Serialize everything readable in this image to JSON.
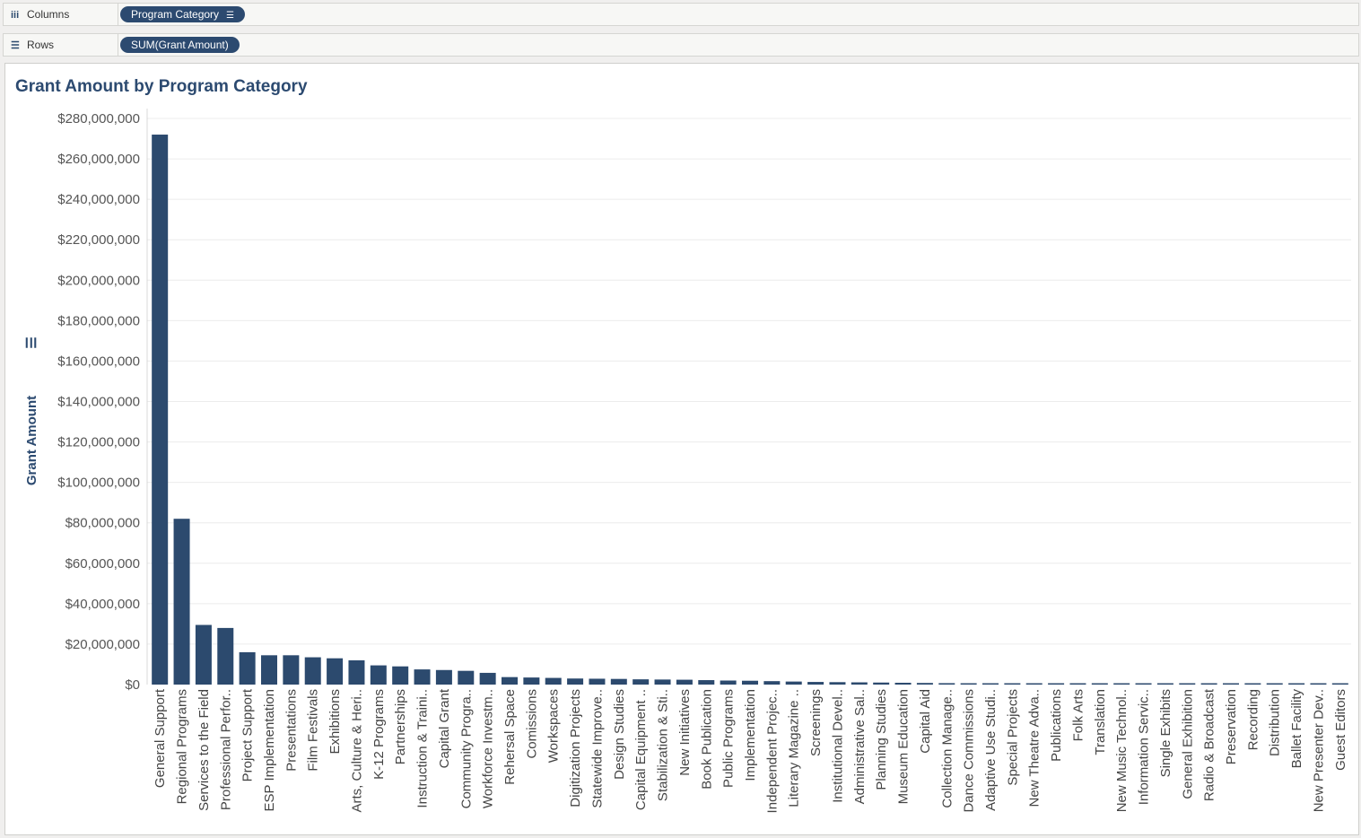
{
  "shelves": {
    "columns": {
      "label": "Columns",
      "icon": "columns-icon",
      "pill": "Program Category"
    },
    "rows": {
      "label": "Rows",
      "icon": "rows-icon",
      "pill": "SUM(Grant Amount)"
    }
  },
  "colors": {
    "bar": "#2c4a6e",
    "pill": "#2c4a70",
    "gridline": "#ececec"
  },
  "chart_data": {
    "type": "bar",
    "title": "Grant Amount by Program Category",
    "xlabel": "",
    "ylabel": "Grant Amount",
    "ylim": [
      0,
      280000000
    ],
    "yticks": [
      0,
      20000000,
      40000000,
      60000000,
      80000000,
      100000000,
      120000000,
      140000000,
      160000000,
      180000000,
      200000000,
      220000000,
      240000000,
      260000000,
      280000000
    ],
    "ytick_labels": [
      "$0",
      "$20,000,000",
      "$40,000,000",
      "$60,000,000",
      "$80,000,000",
      "$100,000,000",
      "$120,000,000",
      "$140,000,000",
      "$160,000,000",
      "$180,000,000",
      "$200,000,000",
      "$220,000,000",
      "$240,000,000",
      "$260,000,000",
      "$280,000,000"
    ],
    "grid": true,
    "categories": [
      "General Support",
      "Regional Programs",
      "Services to the Field",
      "Professional Perfor..",
      "Project Support",
      "ESP Implementation",
      "Presentations",
      "Film Festivals",
      "Exhibitions",
      "Arts, Culture & Heri..",
      "K-12 Programs",
      "Partnerships",
      "Instruction & Traini..",
      "Capital Grant",
      "Community Progra..",
      "Workforce Investm..",
      "Rehersal Space",
      "Comissions",
      "Workspaces",
      "Digitization Projects",
      "Statewide Improve..",
      "Design Studies",
      "Capital Equipment ..",
      "Stabilization & Sti..",
      "New Initiatives",
      "Book Publication",
      "Public Programs",
      "Implementation",
      "Independent Projec..",
      "Literary Magazine ..",
      "Screenings",
      "Institutional Devel..",
      "Administrative Sal..",
      "Planning Studies",
      "Museum Education",
      "Capital Aid",
      "Collection Manage..",
      "Dance Commissions",
      "Adaptive Use Studi..",
      "Special Projects",
      "New Theatre Adva..",
      "Publications",
      "Folk Arts",
      "Translation",
      "New Music Technol..",
      "Information Servic..",
      "Single Exhibits",
      "General Exhibition",
      "Radio & Broadcast",
      "Preservation",
      "Recording",
      "Distribution",
      "Ballet Facility",
      "New Presenter Dev..",
      "Guest Editors"
    ],
    "values": [
      272000000,
      82000000,
      29500000,
      28000000,
      16000000,
      14500000,
      14500000,
      13500000,
      13000000,
      12000000,
      9500000,
      9000000,
      7500000,
      7200000,
      6800000,
      5800000,
      3700000,
      3500000,
      3300000,
      3000000,
      2900000,
      2800000,
      2600000,
      2500000,
      2400000,
      2200000,
      2000000,
      1900000,
      1700000,
      1500000,
      1300000,
      1200000,
      1100000,
      1000000,
      900000,
      800000,
      700000,
      650000,
      600000,
      550000,
      500000,
      400000,
      350000,
      300000,
      250000,
      200000,
      150000,
      120000,
      100000,
      80000,
      60000,
      50000,
      40000,
      30000,
      20000
    ]
  }
}
